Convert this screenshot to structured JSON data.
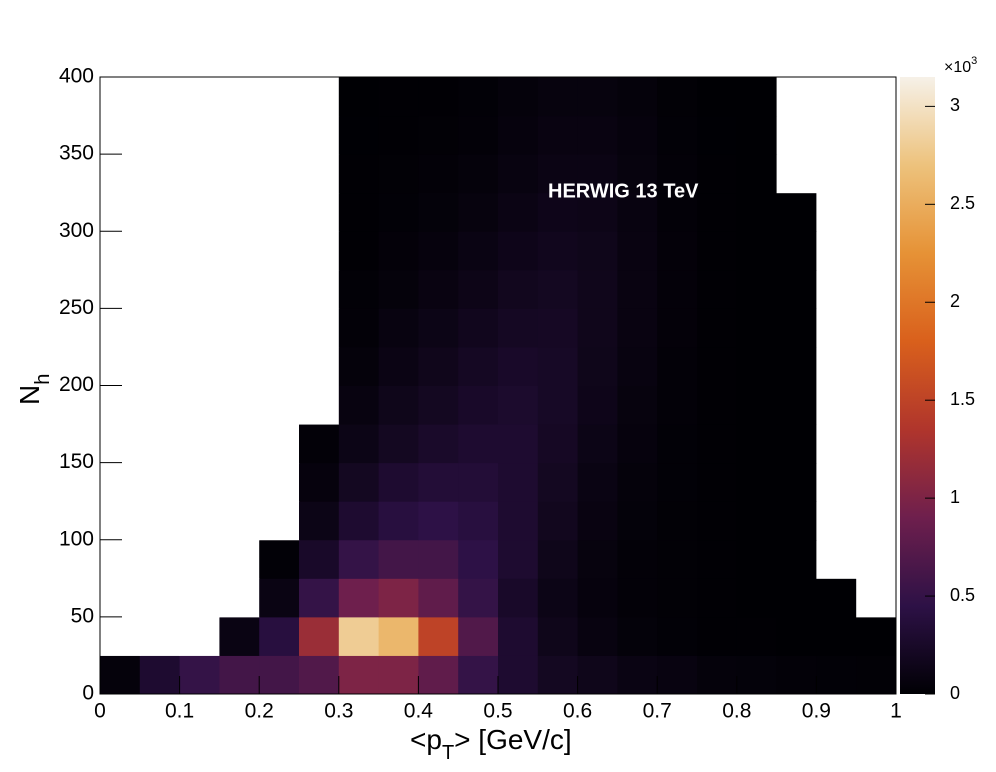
{
  "chart_data": {
    "type": "heatmap",
    "annotation": "HERWIG  13 TeV",
    "x_label_parts": [
      "<p",
      "T",
      "> [GeV/c]"
    ],
    "y_label_parts": [
      "N",
      "h"
    ],
    "z_multiplier_parts": [
      "×10",
      "3"
    ],
    "xlim": [
      0,
      1
    ],
    "ylim": [
      0,
      400
    ],
    "xticks": [
      0,
      {
        "value": 0.1,
        "label": "0.1"
      },
      {
        "value": 0.2,
        "label": "0.2"
      },
      {
        "value": 0.3,
        "label": "0.3"
      },
      {
        "value": 0.4,
        "label": "0.4"
      },
      {
        "value": 0.5,
        "label": "0.5"
      },
      {
        "value": 0.6,
        "label": "0.6"
      },
      {
        "value": 0.7,
        "label": "0.7"
      },
      {
        "value": 0.8,
        "label": "0.8"
      },
      {
        "value": 0.9,
        "label": "0.9"
      },
      1
    ],
    "yticks": [
      0,
      50,
      100,
      150,
      200,
      250,
      300,
      350,
      400
    ],
    "zlim": [
      0,
      3150
    ],
    "zticks": [
      0,
      {
        "value": 500,
        "label": "0.5"
      },
      {
        "value": 1000,
        "label": "1"
      },
      {
        "value": 1500,
        "label": "1.5"
      },
      {
        "value": 2000,
        "label": "2"
      },
      {
        "value": 2500,
        "label": "2.5"
      },
      {
        "value": 3000,
        "label": "3"
      }
    ],
    "colorscale": [
      "#000004",
      "#2d1146",
      "#6e1f4d",
      "#b0352c",
      "#d9601c",
      "#e69236",
      "#edc27c",
      "#f6f1e8"
    ],
    "x_edges": [
      0,
      0.05,
      0.1,
      0.15,
      0.2,
      0.25,
      0.3,
      0.35,
      0.4,
      0.45,
      0.5,
      0.55,
      0.6,
      0.65,
      0.7,
      0.75,
      0.8,
      0.85,
      0.9,
      0.95,
      1
    ],
    "y_edges": [
      0,
      25,
      50,
      75,
      100,
      125,
      150,
      175,
      200,
      225,
      250,
      275,
      300,
      325,
      350,
      375,
      400
    ],
    "z": [
      [
        50,
        300,
        500,
        600,
        600,
        700,
        1000,
        1000,
        800,
        500,
        300,
        200,
        150,
        100,
        80,
        50,
        40,
        30,
        20,
        15
      ],
      [
        0,
        0,
        0,
        100,
        400,
        1200,
        2800,
        2600,
        1500,
        700,
        300,
        150,
        80,
        40,
        20,
        10,
        5,
        3,
        1,
        1
      ],
      [
        0,
        0,
        0,
        0,
        100,
        500,
        900,
        1000,
        800,
        500,
        250,
        120,
        60,
        30,
        15,
        8,
        3,
        2,
        1,
        0
      ],
      [
        0,
        0,
        0,
        0,
        20,
        250,
        500,
        600,
        600,
        450,
        300,
        150,
        70,
        30,
        15,
        5,
        2,
        1,
        0,
        0
      ],
      [
        0,
        0,
        0,
        0,
        0,
        120,
        300,
        400,
        450,
        400,
        300,
        180,
        90,
        40,
        15,
        5,
        2,
        1,
        0,
        0
      ],
      [
        0,
        0,
        0,
        0,
        0,
        60,
        200,
        300,
        350,
        350,
        300,
        200,
        100,
        50,
        20,
        6,
        2,
        1,
        0,
        0
      ],
      [
        0,
        0,
        0,
        0,
        0,
        30,
        120,
        200,
        260,
        300,
        300,
        220,
        120,
        60,
        20,
        6,
        2,
        1,
        0,
        0
      ],
      [
        0,
        0,
        0,
        0,
        0,
        0,
        80,
        150,
        200,
        250,
        280,
        230,
        140,
        70,
        25,
        8,
        2,
        1,
        0,
        0
      ],
      [
        0,
        0,
        0,
        0,
        0,
        0,
        50,
        110,
        160,
        210,
        250,
        230,
        150,
        80,
        30,
        8,
        2,
        1,
        0,
        0
      ],
      [
        0,
        0,
        0,
        0,
        0,
        0,
        30,
        80,
        120,
        170,
        210,
        220,
        160,
        90,
        35,
        8,
        2,
        1,
        0,
        0
      ],
      [
        0,
        0,
        0,
        0,
        0,
        0,
        20,
        50,
        90,
        130,
        180,
        200,
        160,
        90,
        35,
        8,
        2,
        1,
        0,
        0
      ],
      [
        0,
        0,
        0,
        0,
        0,
        0,
        10,
        35,
        60,
        100,
        140,
        170,
        150,
        90,
        35,
        8,
        2,
        1,
        0,
        0
      ],
      [
        0,
        0,
        0,
        0,
        0,
        0,
        8,
        20,
        40,
        70,
        110,
        140,
        130,
        80,
        30,
        6,
        1,
        1,
        0,
        0
      ],
      [
        0,
        0,
        0,
        0,
        0,
        0,
        5,
        15,
        25,
        50,
        80,
        110,
        110,
        70,
        25,
        5,
        1,
        0,
        0,
        0
      ],
      [
        0,
        0,
        0,
        0,
        0,
        0,
        4,
        10,
        15,
        30,
        60,
        90,
        90,
        60,
        20,
        4,
        1,
        0,
        0,
        0
      ],
      [
        0,
        0,
        0,
        0,
        0,
        0,
        3,
        6,
        8,
        20,
        45,
        70,
        70,
        50,
        15,
        3,
        1,
        0,
        0,
        0
      ]
    ]
  }
}
